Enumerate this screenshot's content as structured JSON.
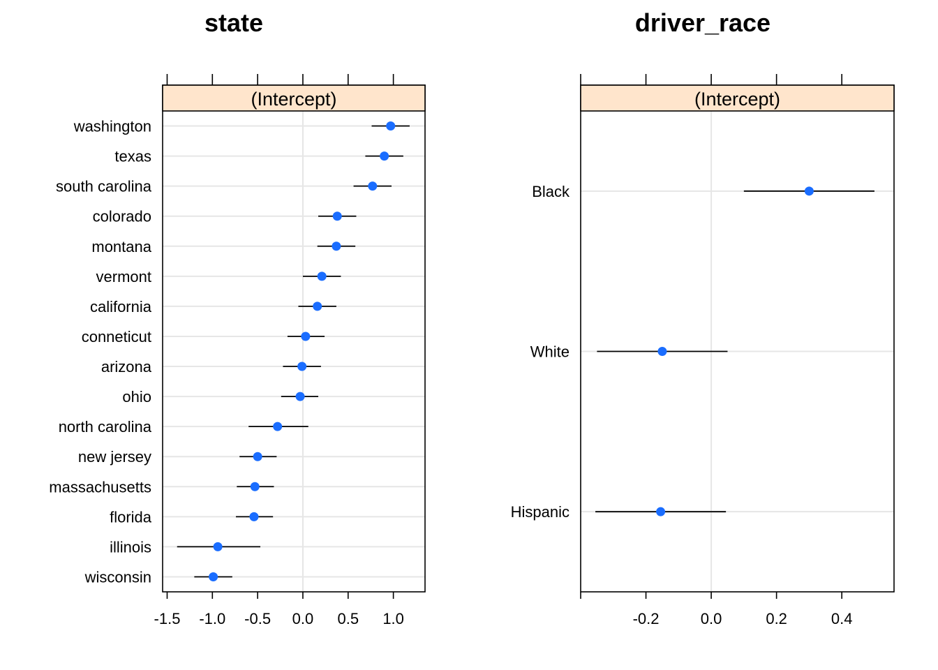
{
  "colors": {
    "point": "#1a6dff",
    "strip": "#ffe5cc",
    "grid": "#e6e6e6"
  },
  "chart_data": [
    {
      "type": "scatter",
      "title": "state",
      "strip_label": "(Intercept)",
      "xlim": [
        -1.55,
        1.35
      ],
      "xticks": [
        -1.5,
        -1.0,
        -0.5,
        0.0,
        0.5,
        1.0
      ],
      "xtick_labels": [
        "-1.5",
        "-1.0",
        "-0.5",
        "0.0",
        "0.5",
        "1.0"
      ],
      "zero_line": true,
      "categories": [
        "washington",
        "texas",
        "south carolina",
        "colorado",
        "montana",
        "vermont",
        "california",
        "conneticut",
        "arizona",
        "ohio",
        "north carolina",
        "new jersey",
        "massachusetts",
        "florida",
        "illinois",
        "wisconsin"
      ],
      "values": [
        0.97,
        0.9,
        0.77,
        0.38,
        0.37,
        0.21,
        0.16,
        0.03,
        -0.01,
        -0.03,
        -0.28,
        -0.5,
        -0.53,
        -0.54,
        -0.94,
        -0.99
      ],
      "lower": [
        0.76,
        0.69,
        0.56,
        0.17,
        0.16,
        0.0,
        -0.05,
        -0.17,
        -0.22,
        -0.24,
        -0.6,
        -0.7,
        -0.73,
        -0.74,
        -1.39,
        -1.2
      ],
      "upper": [
        1.18,
        1.11,
        0.98,
        0.59,
        0.58,
        0.42,
        0.37,
        0.24,
        0.2,
        0.17,
        0.06,
        -0.29,
        -0.32,
        -0.33,
        -0.47,
        -0.78
      ]
    },
    {
      "type": "scatter",
      "title": "driver_race",
      "strip_label": "(Intercept)",
      "xlim": [
        -0.4,
        0.56
      ],
      "xticks": [
        -0.4,
        -0.2,
        0.0,
        0.2,
        0.4
      ],
      "xtick_labels": [
        "",
        "-0.2",
        "0.0",
        "0.2",
        "0.4"
      ],
      "zero_line": true,
      "categories": [
        "Black",
        "White",
        "Hispanic"
      ],
      "values": [
        0.3,
        -0.15,
        -0.155
      ],
      "lower": [
        0.1,
        -0.35,
        -0.355
      ],
      "upper": [
        0.5,
        0.05,
        0.045
      ]
    }
  ]
}
